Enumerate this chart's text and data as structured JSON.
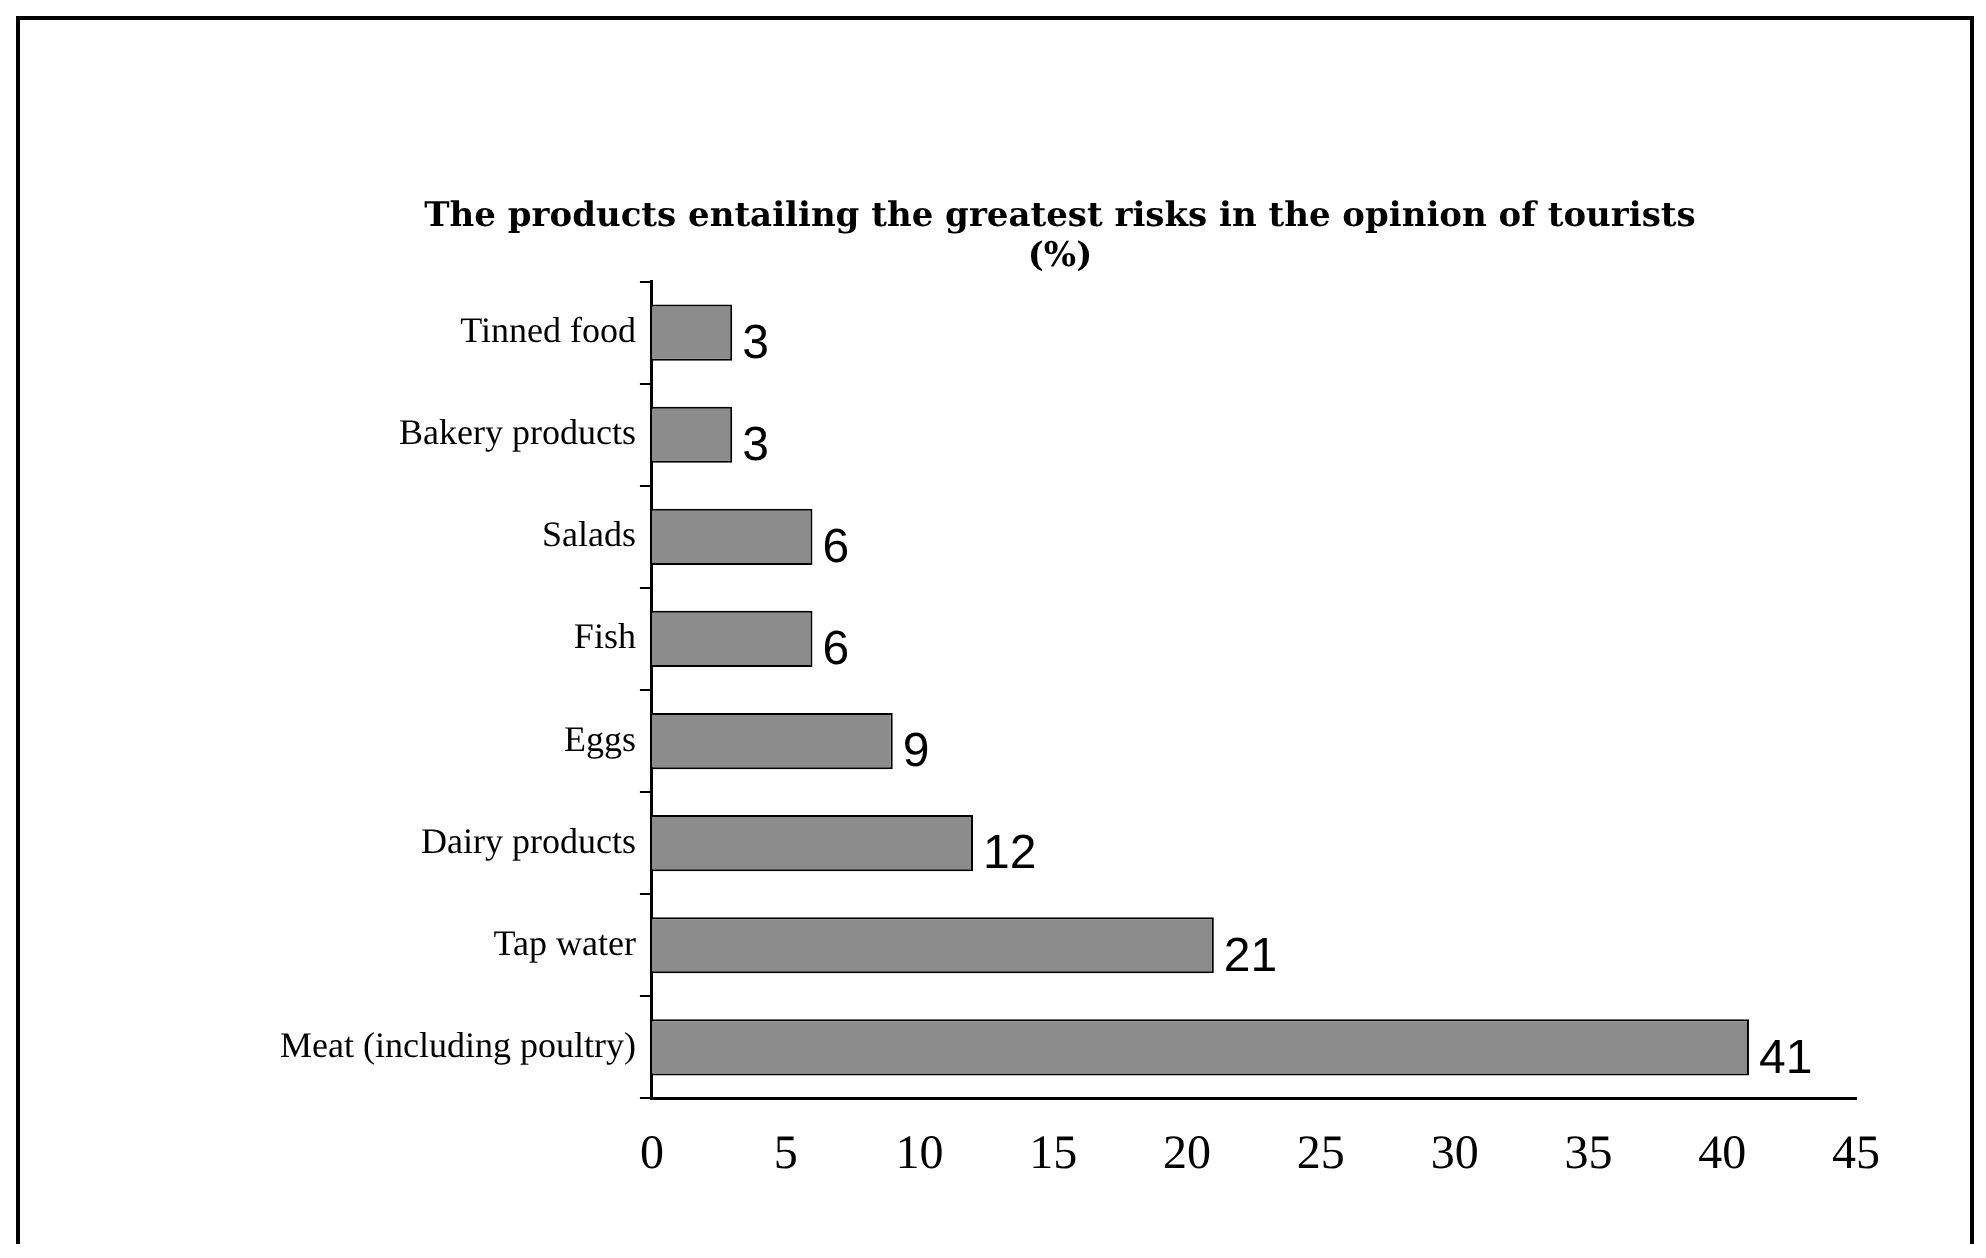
{
  "chart_data": {
    "type": "bar",
    "orientation": "horizontal",
    "title": "The products entailing the greatest risks in the opinion of tourists (%)",
    "categories": [
      "Tinned food",
      "Bakery products",
      "Salads",
      "Fish",
      "Eggs",
      "Dairy products",
      "Tap water",
      "Meat (including poultry)"
    ],
    "values": [
      3,
      3,
      6,
      6,
      9,
      12,
      21,
      41
    ],
    "color": "#8c8c8c",
    "xlim": [
      0,
      45
    ],
    "xticks": [
      0,
      5,
      10,
      15,
      20,
      25,
      30,
      35,
      40,
      45
    ],
    "grid": false,
    "legend": false,
    "data_labels": true
  }
}
